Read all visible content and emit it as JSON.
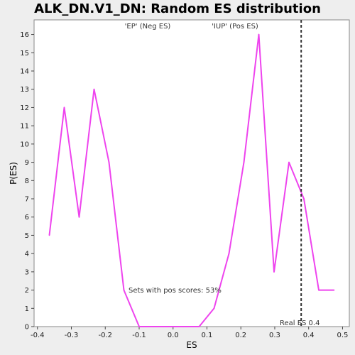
{
  "chart_data": {
    "type": "line",
    "title": "ALK_DN.V1_DN: Random ES distribution",
    "xlabel": "ES",
    "ylabel": "P(ES)",
    "xlim": [
      -0.41,
      0.52
    ],
    "ylim": [
      0,
      16.8
    ],
    "xticks": [
      -0.4,
      -0.3,
      -0.2,
      -0.1,
      0.0,
      0.1,
      0.2,
      0.3,
      0.4,
      0.5
    ],
    "xtick_labels": [
      "-0.4",
      "-0.3",
      "-0.2",
      "-0.1",
      "0.0",
      "0.1",
      "0.2",
      "0.3",
      "0.4",
      "0.5"
    ],
    "yticks": [
      0,
      1,
      2,
      3,
      4,
      5,
      6,
      7,
      8,
      9,
      10,
      11,
      12,
      13,
      14,
      15,
      16
    ],
    "ytick_labels": [
      "0",
      "1",
      "2",
      "3",
      "4",
      "5",
      "6",
      "7",
      "8",
      "9",
      "10",
      "11",
      "12",
      "13",
      "14",
      "15",
      "16"
    ],
    "grid": false,
    "series": [
      {
        "color": "#ee44ee",
        "x": [
          -0.365,
          -0.321,
          -0.277,
          -0.233,
          -0.189,
          -0.145,
          -0.1,
          -0.056,
          -0.012,
          0.032,
          0.077,
          0.121,
          0.165,
          0.209,
          0.253,
          0.298,
          0.342,
          0.386,
          0.43,
          0.475
        ],
        "y": [
          5,
          12,
          6,
          13,
          9,
          2,
          0,
          0,
          0,
          0,
          0,
          1,
          4,
          9,
          16,
          3,
          9,
          7,
          2,
          2
        ]
      }
    ],
    "reference_line": {
      "x": 0.378,
      "label": "Real ES 0.4"
    },
    "annotations": {
      "neg_label": "'EP' (Neg ES)",
      "pos_label": "'IUP' (Pos ES)",
      "pos_scores": "Sets with pos scores: 53%"
    },
    "colors": {
      "neg": "#3333cc",
      "pos": "#dd2222",
      "line": "#ee44ee"
    }
  }
}
